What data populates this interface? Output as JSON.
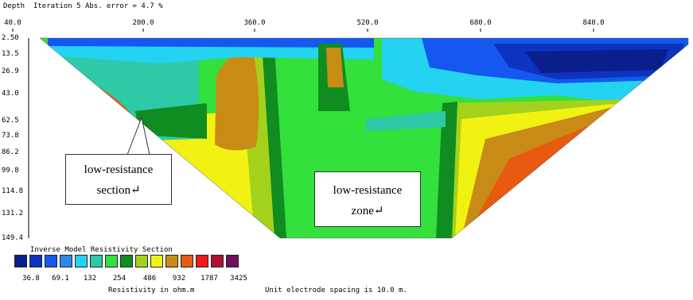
{
  "header": {
    "depth_label": "Depth",
    "iteration_text": "Iteration 5 Abs. error = 4.7 %"
  },
  "chart_data": {
    "type": "heatmap",
    "title": "Inverse Model Resistivity Section",
    "x_ticks": [
      "40.0",
      "200.0",
      "360.0",
      "520.0",
      "680.0",
      "840.0"
    ],
    "y_ticks": [
      "2.50",
      "13.5",
      "26.9",
      "43.0",
      "62.5",
      "73.8",
      "86.2",
      "99.8",
      "114.8",
      "131.2",
      "149.4"
    ],
    "xlim": [
      40,
      900
    ],
    "ylim": [
      2.5,
      149.4
    ],
    "grid": false,
    "colorbar": {
      "title": "Resistivity in ohm.m",
      "colors": [
        "#0a1e8c",
        "#0c34c0",
        "#1458f0",
        "#2c86f0",
        "#24d2f2",
        "#2ec9a6",
        "#33e03c",
        "#108c20",
        "#a4d21c",
        "#f2f212",
        "#c88c16",
        "#e85a10",
        "#f01818",
        "#b01030",
        "#70105c"
      ],
      "labels": [
        "36.8",
        "69.1",
        "132",
        "254",
        "486",
        "932",
        "1787",
        "3425"
      ]
    },
    "footer": "Unit electrode spacing is 10.0 m."
  },
  "annotations": {
    "left_box": {
      "line1": "low-resistance",
      "line2": "section↵"
    },
    "right_box": {
      "line1": "low-resistance",
      "line2": "zone↵"
    }
  }
}
